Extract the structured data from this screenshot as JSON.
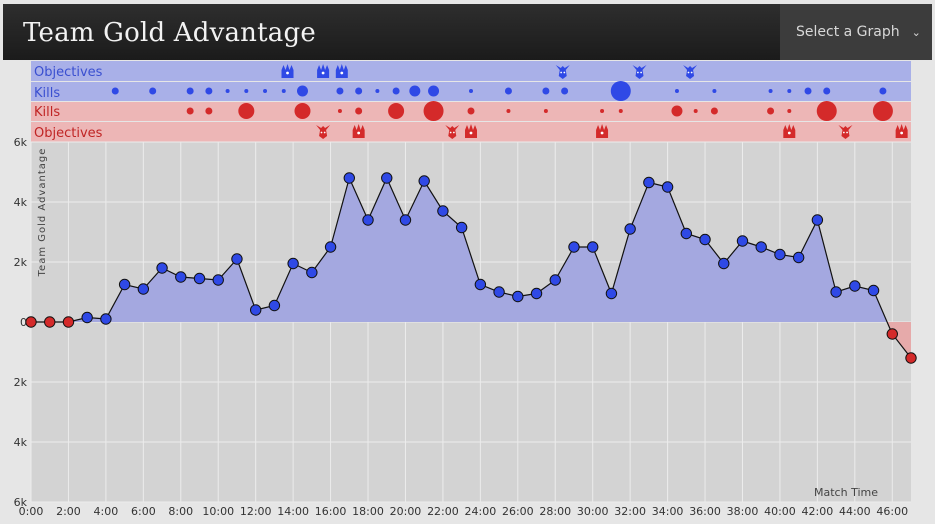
{
  "header": {
    "title": "Team Gold Advantage",
    "select_label": "Select a Graph"
  },
  "lanes": {
    "blue_objectives_label": "Objectives",
    "blue_kills_label": "Kills",
    "red_kills_label": "Kills",
    "red_objectives_label": "Objectives"
  },
  "colors": {
    "blue": "#2f49e6",
    "red": "#d42a2a",
    "blue_fill": "#a4a8e0",
    "red_fill": "#e6aaaa",
    "blue_lane": "#a9b0e8",
    "red_lane": "#edb6b6",
    "plot_bg": "#d3d3d3"
  },
  "chart_data": {
    "type": "area",
    "title": "Team Gold Advantage",
    "ylabel": "Team Gold Advantage",
    "xlabel": "Match Time",
    "ylim": [
      -6000,
      6000
    ],
    "yticks": [
      6000,
      4000,
      2000,
      0,
      -2000,
      -4000,
      -6000
    ],
    "ytick_labels": [
      "6k",
      "4k",
      "2k",
      "0",
      "2k",
      "4k",
      "6k"
    ],
    "xlim": [
      0,
      47
    ],
    "xticks": [
      0,
      2,
      4,
      6,
      8,
      10,
      12,
      14,
      16,
      18,
      20,
      22,
      24,
      26,
      28,
      30,
      32,
      34,
      36,
      38,
      40,
      42,
      44,
      46
    ],
    "xtick_labels": [
      "0:00",
      "2:00",
      "4:00",
      "6:00",
      "8:00",
      "10:00",
      "12:00",
      "14:00",
      "16:00",
      "18:00",
      "20:00",
      "22:00",
      "24:00",
      "26:00",
      "28:00",
      "30:00",
      "32:00",
      "34:00",
      "36:00",
      "38:00",
      "40:00",
      "42:00",
      "44:00",
      "46:00"
    ],
    "series": [
      {
        "name": "Team Gold Advantage",
        "x": [
          0,
          1,
          2,
          3,
          4,
          5,
          6,
          7,
          8,
          9,
          10,
          11,
          12,
          13,
          14,
          15,
          16,
          17,
          18,
          19,
          20,
          21,
          22,
          23,
          24,
          25,
          26,
          27,
          28,
          29,
          30,
          31,
          32,
          33,
          34,
          35,
          36,
          37,
          38,
          39,
          40,
          41,
          42,
          43,
          44,
          45,
          46,
          47
        ],
        "values": [
          0,
          0,
          0,
          150,
          100,
          1250,
          1100,
          1800,
          1500,
          1450,
          1400,
          2100,
          400,
          550,
          1950,
          1650,
          2500,
          4800,
          3400,
          4800,
          3400,
          4700,
          3700,
          3150,
          1250,
          1000,
          850,
          950,
          1400,
          2500,
          2500,
          950,
          3100,
          4650,
          4500,
          2950,
          2750,
          1950,
          2700,
          2500,
          2250,
          2150,
          3400,
          1000,
          1200,
          1050,
          -400,
          -1200
        ]
      }
    ],
    "kill_events": {
      "blue": [
        {
          "t": 4.5,
          "s": 1
        },
        {
          "t": 6.5,
          "s": 1
        },
        {
          "t": 8.5,
          "s": 1
        },
        {
          "t": 9.5,
          "s": 1
        },
        {
          "t": 10.5,
          "s": 0
        },
        {
          "t": 11.5,
          "s": 0
        },
        {
          "t": 12.5,
          "s": 0
        },
        {
          "t": 13.5,
          "s": 0
        },
        {
          "t": 14.5,
          "s": 2
        },
        {
          "t": 16.5,
          "s": 1
        },
        {
          "t": 17.5,
          "s": 1
        },
        {
          "t": 18.5,
          "s": 0
        },
        {
          "t": 19.5,
          "s": 1
        },
        {
          "t": 20.5,
          "s": 2
        },
        {
          "t": 21.5,
          "s": 2
        },
        {
          "t": 23.5,
          "s": 0
        },
        {
          "t": 25.5,
          "s": 1
        },
        {
          "t": 27.5,
          "s": 1
        },
        {
          "t": 28.5,
          "s": 1
        },
        {
          "t": 31.5,
          "s": 4
        },
        {
          "t": 34.5,
          "s": 0
        },
        {
          "t": 36.5,
          "s": 0
        },
        {
          "t": 39.5,
          "s": 0
        },
        {
          "t": 40.5,
          "s": 0
        },
        {
          "t": 41.5,
          "s": 1
        },
        {
          "t": 42.5,
          "s": 1
        },
        {
          "t": 45.5,
          "s": 1
        }
      ],
      "red": [
        {
          "t": 8.5,
          "s": 1
        },
        {
          "t": 9.5,
          "s": 1
        },
        {
          "t": 11.5,
          "s": 3
        },
        {
          "t": 14.5,
          "s": 3
        },
        {
          "t": 16.5,
          "s": 0
        },
        {
          "t": 17.5,
          "s": 1
        },
        {
          "t": 19.5,
          "s": 3
        },
        {
          "t": 21.5,
          "s": 4
        },
        {
          "t": 23.5,
          "s": 1
        },
        {
          "t": 25.5,
          "s": 0
        },
        {
          "t": 27.5,
          "s": 0
        },
        {
          "t": 30.5,
          "s": 0
        },
        {
          "t": 31.5,
          "s": 0
        },
        {
          "t": 34.5,
          "s": 2
        },
        {
          "t": 35.5,
          "s": 0
        },
        {
          "t": 36.5,
          "s": 1
        },
        {
          "t": 39.5,
          "s": 1
        },
        {
          "t": 40.5,
          "s": 0
        },
        {
          "t": 42.5,
          "s": 4
        },
        {
          "t": 45.5,
          "s": 4
        }
      ]
    },
    "objective_events": {
      "blue": [
        {
          "t": 13.7,
          "k": "baron"
        },
        {
          "t": 15.6,
          "k": "baron"
        },
        {
          "t": 16.6,
          "k": "baron"
        },
        {
          "t": 28.4,
          "k": "dragon"
        },
        {
          "t": 32.5,
          "k": "dragon"
        },
        {
          "t": 35.2,
          "k": "dragon"
        }
      ],
      "red": [
        {
          "t": 15.6,
          "k": "dragon"
        },
        {
          "t": 17.5,
          "k": "baron"
        },
        {
          "t": 22.5,
          "k": "dragon"
        },
        {
          "t": 23.5,
          "k": "baron"
        },
        {
          "t": 30.5,
          "k": "baron"
        },
        {
          "t": 40.5,
          "k": "baron"
        },
        {
          "t": 43.5,
          "k": "dragon"
        },
        {
          "t": 46.5,
          "k": "baron"
        }
      ]
    }
  }
}
